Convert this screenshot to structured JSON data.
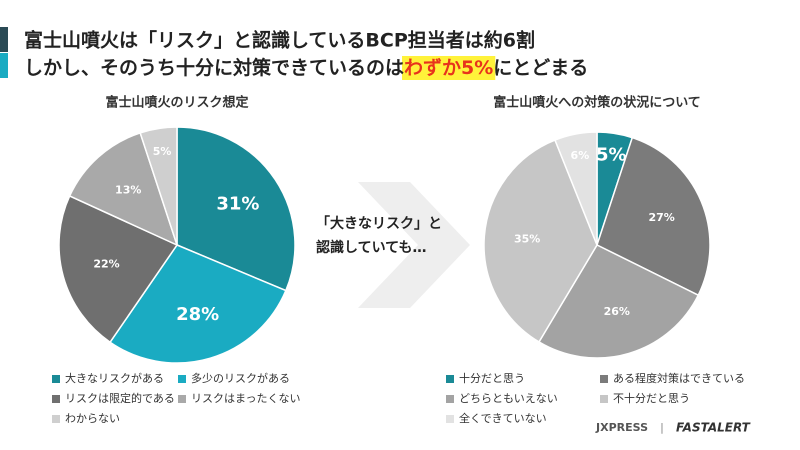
{
  "header": {
    "line1": "富士山噴火は「リスク」と認識しているBCP担当者は約6割",
    "line2_before": "しかし、そのうち十分に対策できているのは",
    "line2_highlight": "わずか5%",
    "line2_after": "にとどまる"
  },
  "arrow_text": [
    "「大きなリスク」と",
    "認識していても…"
  ],
  "logos": {
    "left": "JXPRESS",
    "separator": "|",
    "right": "FASTALERT"
  },
  "chart_data": [
    {
      "type": "pie",
      "title": "富士山噴火のリスク想定",
      "categories": [
        "大きなリスクがある",
        "多少のリスクがある",
        "リスクは限定的である",
        "リスクはまったくない",
        "わからない"
      ],
      "values": [
        31,
        28,
        22,
        13,
        5
      ],
      "value_labels": [
        "31%",
        "28%",
        "22%",
        "13%",
        "5%"
      ],
      "colors": [
        "#1a8a96",
        "#1aabc2",
        "#6f6f6f",
        "#a9a9a9",
        "#cfcfcf"
      ]
    },
    {
      "type": "pie",
      "title": "富士山噴火への対策の状況について",
      "categories": [
        "十分だと思う",
        "ある程度対策はできている",
        "どちらともいえない",
        "不十分だと思う",
        "全くできていない"
      ],
      "values": [
        5,
        27,
        26,
        35,
        6
      ],
      "value_labels": [
        "5%",
        "27%",
        "26%",
        "35%",
        "6%"
      ],
      "colors": [
        "#1a8a96",
        "#7b7b7b",
        "#a3a3a3",
        "#c6c6c6",
        "#e2e2e2"
      ]
    }
  ]
}
